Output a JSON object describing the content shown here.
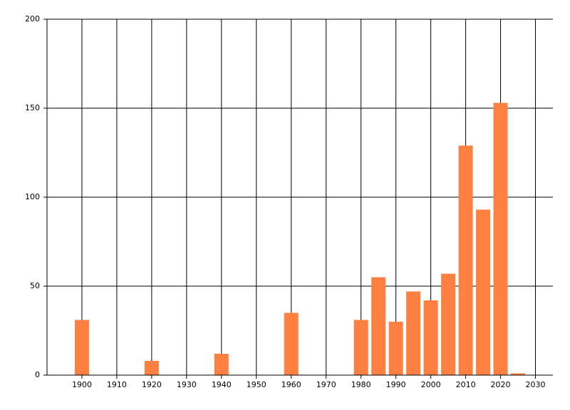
{
  "chart_data": {
    "type": "bar",
    "x": [
      1900,
      1920,
      1940,
      1960,
      1980,
      1985,
      1990,
      1995,
      2000,
      2005,
      2010,
      2015,
      2020,
      2025
    ],
    "values": [
      31,
      8,
      12,
      35,
      31,
      55,
      30,
      47,
      42,
      57,
      129,
      93,
      153,
      1
    ],
    "color": "#ff8040",
    "xlim": [
      1890,
      2035
    ],
    "xticks": [
      1900,
      1910,
      1920,
      1930,
      1940,
      1950,
      1960,
      1970,
      1980,
      1990,
      2000,
      2010,
      2020,
      2030
    ],
    "ylim": [
      0,
      200
    ],
    "yticks": [
      0,
      50,
      100,
      150,
      200
    ],
    "grid": true
  }
}
